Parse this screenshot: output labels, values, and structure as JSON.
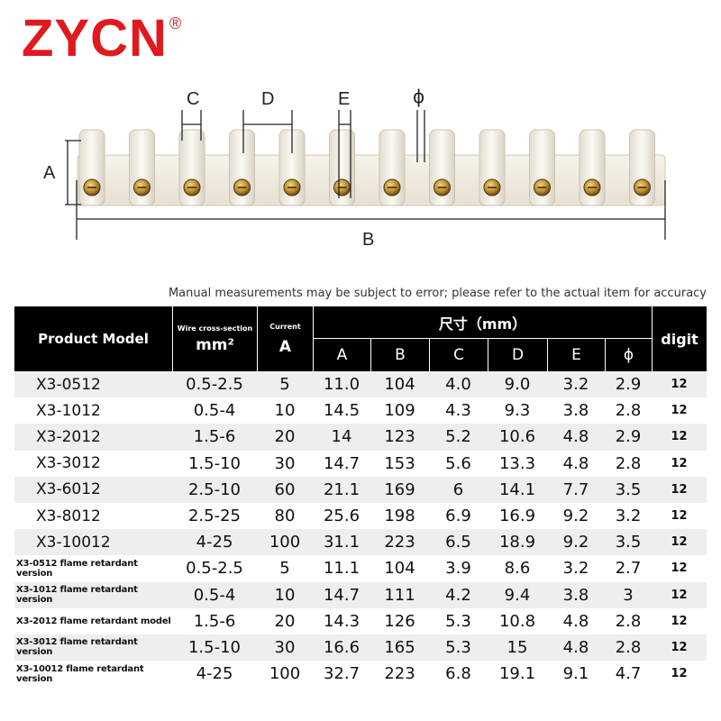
{
  "brand": {
    "name": "ZYCN",
    "mark": "®",
    "color": "#e1191f"
  },
  "diagram": {
    "labels": {
      "A": "A",
      "B": "B",
      "C": "C",
      "D": "D",
      "E": "E",
      "phi": "ϕ"
    },
    "terminal_count": 12
  },
  "note": "Manual measurements may be subject to error; please refer to the actual item for accuracy",
  "table": {
    "header": {
      "product_model": "Product Model",
      "wire_label": "Wire cross-section",
      "wire_unit": "mm²",
      "current_label": "Current",
      "current_unit": "A",
      "size_group": "尺寸（mm）",
      "cols": [
        "A",
        "B",
        "C",
        "D",
        "E",
        "ϕ"
      ],
      "digit": "digit"
    },
    "rows": [
      {
        "model": "X3-0512",
        "wire": "0.5-2.5",
        "current": "5",
        "A": "11.0",
        "B": "104",
        "C": "4.0",
        "D": "9.0",
        "E": "3.2",
        "phi": "2.9",
        "digit": "12"
      },
      {
        "model": "X3-1012",
        "wire": "0.5-4",
        "current": "10",
        "A": "14.5",
        "B": "109",
        "C": "4.3",
        "D": "9.3",
        "E": "3.8",
        "phi": "2.8",
        "digit": "12"
      },
      {
        "model": "X3-2012",
        "wire": "1.5-6",
        "current": "20",
        "A": "14",
        "B": "123",
        "C": "5.2",
        "D": "10.6",
        "E": "4.8",
        "phi": "2.9",
        "digit": "12"
      },
      {
        "model": "X3-3012",
        "wire": "1.5-10",
        "current": "30",
        "A": "14.7",
        "B": "153",
        "C": "5.6",
        "D": "13.3",
        "E": "4.8",
        "phi": "2.8",
        "digit": "12"
      },
      {
        "model": "X3-6012",
        "wire": "2.5-10",
        "current": "60",
        "A": "21.1",
        "B": "169",
        "C": "6",
        "D": "14.1",
        "E": "7.7",
        "phi": "3.5",
        "digit": "12"
      },
      {
        "model": "X3-8012",
        "wire": "2.5-25",
        "current": "80",
        "A": "25.6",
        "B": "198",
        "C": "6.9",
        "D": "16.9",
        "E": "9.2",
        "phi": "3.2",
        "digit": "12"
      },
      {
        "model": "X3-10012",
        "wire": "4-25",
        "current": "100",
        "A": "31.1",
        "B": "223",
        "C": "6.5",
        "D": "18.9",
        "E": "9.2",
        "phi": "3.5",
        "digit": "12"
      },
      {
        "model": "X3-0512 flame retardant version",
        "wire": "0.5-2.5",
        "current": "5",
        "A": "11.1",
        "B": "104",
        "C": "3.9",
        "D": "8.6",
        "E": "3.2",
        "phi": "2.7",
        "digit": "12"
      },
      {
        "model": "X3-1012 flame retardant version",
        "wire": "0.5-4",
        "current": "10",
        "A": "14.7",
        "B": "111",
        "C": "4.2",
        "D": "9.4",
        "E": "3.8",
        "phi": "3",
        "digit": "12"
      },
      {
        "model": "X3-2012 flame retardant model",
        "wire": "1.5-6",
        "current": "20",
        "A": "14.3",
        "B": "126",
        "C": "5.3",
        "D": "10.8",
        "E": "4.8",
        "phi": "2.8",
        "digit": "12"
      },
      {
        "model": "X3-3012 flame retardant version",
        "wire": "1.5-10",
        "current": "30",
        "A": "16.6",
        "B": "165",
        "C": "5.3",
        "D": "15",
        "E": "4.8",
        "phi": "2.8",
        "digit": "12"
      },
      {
        "model": "X3-10012 flame retardant version",
        "wire": "4-25",
        "current": "100",
        "A": "32.7",
        "B": "223",
        "C": "6.8",
        "D": "19.1",
        "E": "9.1",
        "phi": "4.7",
        "digit": "12"
      }
    ]
  }
}
